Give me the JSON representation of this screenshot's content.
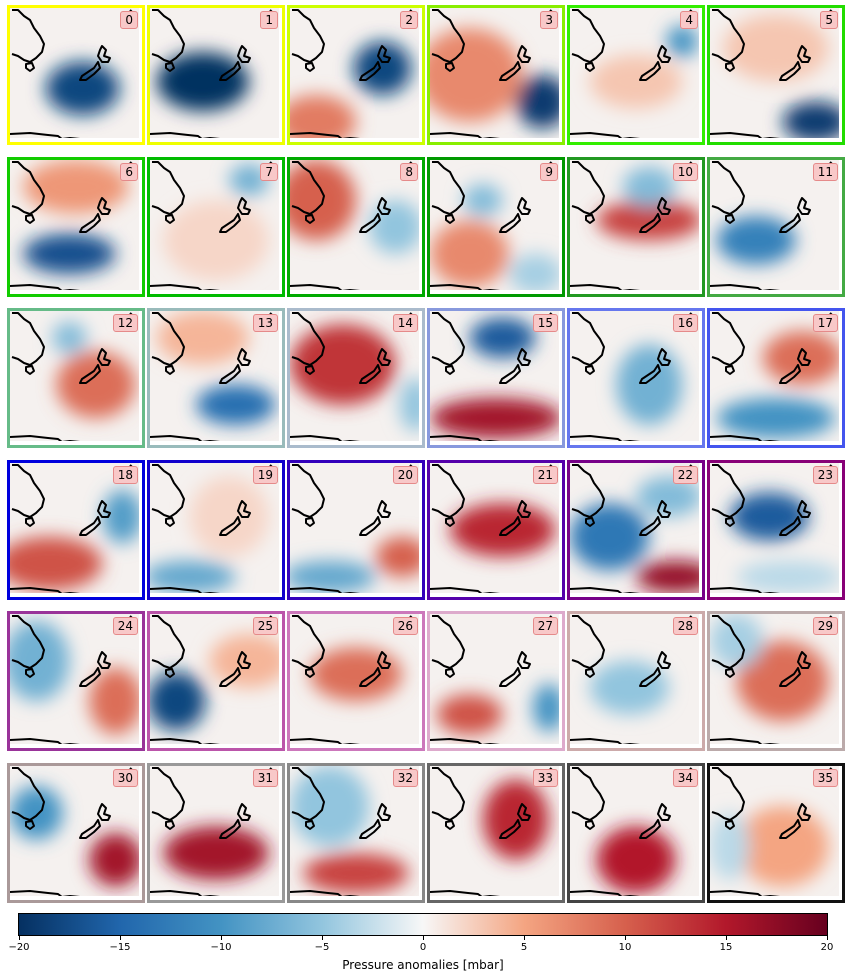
{
  "chart_data": {
    "type": "heatmap",
    "description_count": 36,
    "panels": [
      {
        "id": "0",
        "border": "#ffff00",
        "blobs": [
          [
            0.55,
            0.6,
            0.28,
            0.2,
            -18
          ]
        ]
      },
      {
        "id": "1",
        "border": "#eeff00",
        "blobs": [
          [
            0.4,
            0.55,
            0.35,
            0.22,
            -20
          ]
        ]
      },
      {
        "id": "2",
        "border": "#ccff00",
        "blobs": [
          [
            0.7,
            0.45,
            0.22,
            0.2,
            -18
          ],
          [
            0.2,
            0.85,
            0.3,
            0.2,
            8
          ]
        ]
      },
      {
        "id": "3",
        "border": "#88ee00",
        "blobs": [
          [
            0.85,
            0.7,
            0.2,
            0.2,
            -19
          ],
          [
            0.3,
            0.5,
            0.4,
            0.35,
            7
          ]
        ]
      },
      {
        "id": "4",
        "border": "#33ee00",
        "blobs": [
          [
            0.85,
            0.25,
            0.12,
            0.12,
            -10
          ],
          [
            0.5,
            0.55,
            0.35,
            0.2,
            3
          ]
        ]
      },
      {
        "id": "5",
        "border": "#22dd00",
        "blobs": [
          [
            0.8,
            0.85,
            0.25,
            0.15,
            -19
          ],
          [
            0.5,
            0.3,
            0.4,
            0.25,
            3
          ]
        ]
      },
      {
        "id": "6",
        "border": "#11cc00",
        "blobs": [
          [
            0.45,
            0.7,
            0.35,
            0.15,
            -17
          ],
          [
            0.5,
            0.2,
            0.4,
            0.2,
            6
          ]
        ]
      },
      {
        "id": "7",
        "border": "#00bb00",
        "blobs": [
          [
            0.75,
            0.15,
            0.15,
            0.12,
            -7
          ],
          [
            0.5,
            0.6,
            0.4,
            0.3,
            2
          ]
        ]
      },
      {
        "id": "8",
        "border": "#00aa00",
        "blobs": [
          [
            0.2,
            0.3,
            0.3,
            0.3,
            10
          ],
          [
            0.8,
            0.5,
            0.2,
            0.2,
            -5
          ]
        ]
      },
      {
        "id": "9",
        "border": "#009900",
        "blobs": [
          [
            0.4,
            0.3,
            0.15,
            0.12,
            -6
          ],
          [
            0.3,
            0.7,
            0.3,
            0.25,
            7
          ],
          [
            0.8,
            0.85,
            0.2,
            0.15,
            -4
          ]
        ]
      },
      {
        "id": "10",
        "border": "#229922",
        "blobs": [
          [
            0.6,
            0.45,
            0.4,
            0.15,
            12
          ],
          [
            0.6,
            0.2,
            0.2,
            0.15,
            -6
          ]
        ]
      },
      {
        "id": "11",
        "border": "#44aa44",
        "blobs": [
          [
            0.35,
            0.6,
            0.3,
            0.18,
            -12
          ]
        ]
      },
      {
        "id": "12",
        "border": "#66bb88",
        "blobs": [
          [
            0.65,
            0.55,
            0.3,
            0.25,
            9
          ],
          [
            0.45,
            0.2,
            0.13,
            0.12,
            -6
          ]
        ]
      },
      {
        "id": "13",
        "border": "#99bbbb",
        "blobs": [
          [
            0.65,
            0.7,
            0.3,
            0.15,
            -14
          ],
          [
            0.4,
            0.2,
            0.35,
            0.2,
            4
          ]
        ]
      },
      {
        "id": "14",
        "border": "#aabbcc",
        "blobs": [
          [
            0.4,
            0.4,
            0.4,
            0.3,
            13
          ],
          [
            0.95,
            0.7,
            0.12,
            0.2,
            -5
          ]
        ]
      },
      {
        "id": "15",
        "border": "#8899dd",
        "blobs": [
          [
            0.55,
            0.2,
            0.25,
            0.15,
            -16
          ],
          [
            0.5,
            0.8,
            0.5,
            0.15,
            16
          ]
        ]
      },
      {
        "id": "16",
        "border": "#6677ee",
        "blobs": [
          [
            0.6,
            0.55,
            0.25,
            0.3,
            -7
          ]
        ]
      },
      {
        "id": "17",
        "border": "#4455ee",
        "blobs": [
          [
            0.7,
            0.35,
            0.3,
            0.2,
            9
          ],
          [
            0.5,
            0.8,
            0.45,
            0.15,
            -10
          ]
        ]
      },
      {
        "id": "18",
        "border": "#0000dd",
        "blobs": [
          [
            0.3,
            0.75,
            0.4,
            0.2,
            11
          ],
          [
            0.85,
            0.4,
            0.15,
            0.2,
            -9
          ]
        ]
      },
      {
        "id": "19",
        "border": "#1100cc",
        "blobs": [
          [
            0.3,
            0.85,
            0.35,
            0.12,
            -8
          ],
          [
            0.6,
            0.4,
            0.3,
            0.3,
            2
          ]
        ]
      },
      {
        "id": "20",
        "border": "#3300bb",
        "blobs": [
          [
            0.85,
            0.7,
            0.2,
            0.15,
            10
          ],
          [
            0.3,
            0.85,
            0.35,
            0.12,
            -8
          ]
        ]
      },
      {
        "id": "21",
        "border": "#5500aa",
        "blobs": [
          [
            0.55,
            0.5,
            0.4,
            0.2,
            14
          ]
        ]
      },
      {
        "id": "22",
        "border": "#770088",
        "blobs": [
          [
            0.8,
            0.85,
            0.3,
            0.12,
            17
          ],
          [
            0.3,
            0.55,
            0.3,
            0.25,
            -13
          ],
          [
            0.75,
            0.25,
            0.25,
            0.15,
            -6
          ]
        ]
      },
      {
        "id": "23",
        "border": "#880077",
        "blobs": [
          [
            0.45,
            0.4,
            0.3,
            0.18,
            -16
          ],
          [
            0.6,
            0.85,
            0.4,
            0.12,
            -3
          ]
        ]
      },
      {
        "id": "24",
        "border": "#993399",
        "blobs": [
          [
            0.8,
            0.65,
            0.2,
            0.25,
            9
          ],
          [
            0.2,
            0.35,
            0.25,
            0.3,
            -7
          ]
        ]
      },
      {
        "id": "25",
        "border": "#bb55aa",
        "blobs": [
          [
            0.2,
            0.65,
            0.22,
            0.22,
            -18
          ],
          [
            0.75,
            0.35,
            0.3,
            0.2,
            4
          ]
        ]
      },
      {
        "id": "26",
        "border": "#cc77bb",
        "blobs": [
          [
            0.5,
            0.45,
            0.35,
            0.2,
            9
          ]
        ]
      },
      {
        "id": "27",
        "border": "#ddaacc",
        "blobs": [
          [
            0.3,
            0.75,
            0.25,
            0.15,
            11
          ],
          [
            0.9,
            0.7,
            0.12,
            0.18,
            -10
          ]
        ]
      },
      {
        "id": "28",
        "border": "#ccaaaa",
        "blobs": [
          [
            0.45,
            0.55,
            0.3,
            0.2,
            -5
          ]
        ]
      },
      {
        "id": "29",
        "border": "#bbaaaa",
        "blobs": [
          [
            0.55,
            0.5,
            0.35,
            0.3,
            9
          ],
          [
            0.2,
            0.2,
            0.2,
            0.2,
            -4
          ]
        ]
      },
      {
        "id": "30",
        "border": "#aa9999",
        "blobs": [
          [
            0.8,
            0.7,
            0.2,
            0.2,
            16
          ],
          [
            0.2,
            0.35,
            0.2,
            0.2,
            -10
          ]
        ]
      },
      {
        "id": "31",
        "border": "#999999",
        "blobs": [
          [
            0.5,
            0.65,
            0.4,
            0.2,
            16
          ]
        ]
      },
      {
        "id": "32",
        "border": "#888888",
        "blobs": [
          [
            0.5,
            0.8,
            0.4,
            0.15,
            12
          ],
          [
            0.3,
            0.3,
            0.3,
            0.3,
            -5
          ]
        ]
      },
      {
        "id": "33",
        "border": "#666666",
        "blobs": [
          [
            0.65,
            0.4,
            0.25,
            0.3,
            14
          ]
        ]
      },
      {
        "id": "34",
        "border": "#444444",
        "blobs": [
          [
            0.5,
            0.7,
            0.3,
            0.25,
            15
          ]
        ]
      },
      {
        "id": "35",
        "border": "#111111",
        "blobs": [
          [
            0.55,
            0.6,
            0.35,
            0.3,
            5
          ],
          [
            0.15,
            0.6,
            0.15,
            0.25,
            -3
          ]
        ]
      }
    ],
    "colorbar": {
      "min": -20,
      "max": 20,
      "ticks": [
        "-20",
        "-15",
        "-10",
        "-5",
        "0",
        "5",
        "10",
        "15",
        "20"
      ],
      "label": "Pressure anomalies [mbar]",
      "colormap": "RdBu_r"
    }
  }
}
